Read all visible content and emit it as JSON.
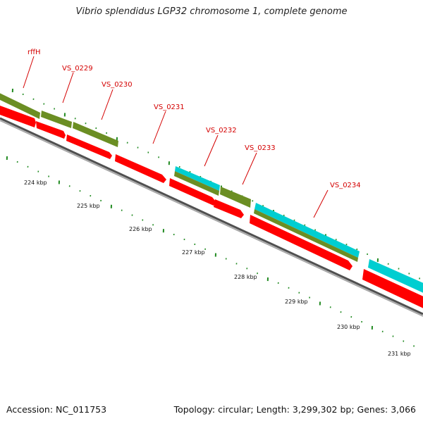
{
  "title": "Vibrio splendidus LGP32 chromosome 1, complete genome",
  "footer": {
    "accession": "Accession: NC_011753",
    "summary": "Topology: circular; Length: 3,299,302 bp; Genes: 3,066"
  },
  "colors": {
    "cds": "#ff0000",
    "gene": "#6b8e23",
    "rna": "#00ced1",
    "backbone": "#808080",
    "label": "#d40000",
    "tick": "#228b22"
  },
  "chart_data": {
    "type": "genome-map",
    "units": "kbp",
    "scale_labels": [
      "224 kbp",
      "225 kbp",
      "226 kbp",
      "227 kbp",
      "228 kbp",
      "229 kbp",
      "230 kbp",
      "231 kbp"
    ],
    "gene_labels": [
      "rffH",
      "VS_0229",
      "VS_0230",
      "VS_0231",
      "VS_0232",
      "VS_0233",
      "VS_0234"
    ]
  }
}
